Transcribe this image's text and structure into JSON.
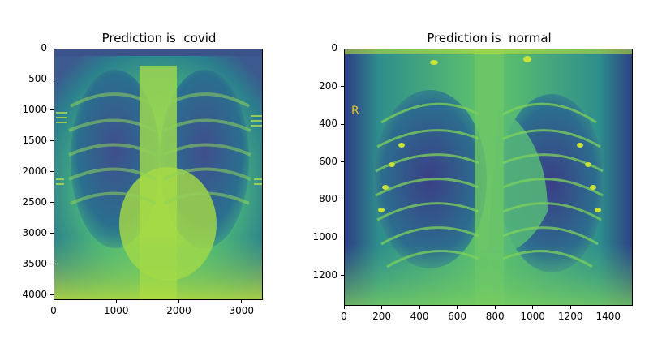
{
  "chart_data": [
    {
      "type": "image",
      "title": "Prediction is  covid",
      "x_ticks": [
        0,
        1000,
        2000,
        3000
      ],
      "y_ticks": [
        0,
        500,
        1000,
        1500,
        2000,
        2500,
        3000,
        3500,
        4000
      ],
      "xlim": [
        0,
        3340
      ],
      "ylim": [
        4080,
        0
      ],
      "colormap": "viridis",
      "grid": false
    },
    {
      "type": "image",
      "title": "Prediction is  normal",
      "x_ticks": [
        0,
        200,
        400,
        600,
        800,
        1000,
        1200,
        1400
      ],
      "y_ticks": [
        0,
        200,
        400,
        600,
        800,
        1000,
        1200
      ],
      "xlim": [
        0,
        1530
      ],
      "ylim": [
        1360,
        0
      ],
      "colormap": "viridis",
      "grid": false,
      "image_annotation": "R"
    }
  ]
}
